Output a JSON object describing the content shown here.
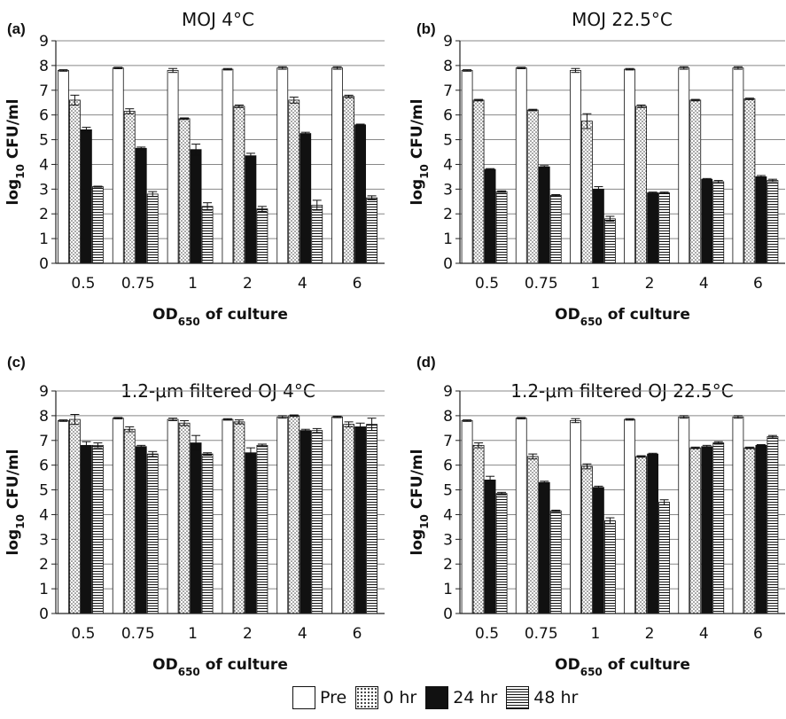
{
  "x_axis_label": {
    "prefix": "OD",
    "sub": "650",
    "suffix": " of  culture"
  },
  "y_axis_label": {
    "prefix": "log",
    "sub": "10",
    "suffix": " CFU/ml"
  },
  "legend": [
    {
      "key": "pre",
      "label": "Pre"
    },
    {
      "key": "0hr",
      "label": "0 hr"
    },
    {
      "key": "24hr",
      "label": "24 hr"
    },
    {
      "key": "48hr",
      "label": "48 hr"
    }
  ],
  "chart_data": [
    {
      "type": "bar",
      "panel": "(a)",
      "title": "MOJ 4°C",
      "categories": [
        "0.5",
        "0.75",
        "1",
        "2",
        "4",
        "6"
      ],
      "ylim": [
        0,
        9
      ],
      "yticks": [
        0,
        1,
        2,
        3,
        4,
        5,
        6,
        7,
        8,
        9
      ],
      "grid": true,
      "series": [
        {
          "name": "Pre",
          "values": [
            7.8,
            7.9,
            7.8,
            7.85,
            7.9,
            7.9
          ],
          "err": [
            0.03,
            0.03,
            0.08,
            0.03,
            0.05,
            0.05
          ]
        },
        {
          "name": "0 hr",
          "values": [
            6.6,
            6.15,
            5.85,
            6.35,
            6.6,
            6.75
          ],
          "err": [
            0.2,
            0.1,
            0.03,
            0.05,
            0.12,
            0.05
          ]
        },
        {
          "name": "24 hr",
          "values": [
            5.4,
            4.65,
            4.6,
            4.35,
            5.25,
            5.6
          ],
          "err": [
            0.1,
            0.05,
            0.22,
            0.1,
            0.05,
            0.03
          ]
        },
        {
          "name": "48 hr",
          "values": [
            3.1,
            2.8,
            2.3,
            2.2,
            2.35,
            2.65
          ],
          "err": [
            0.02,
            0.1,
            0.15,
            0.1,
            0.2,
            0.08
          ]
        }
      ]
    },
    {
      "type": "bar",
      "panel": "(b)",
      "title": "MOJ 22.5°C",
      "categories": [
        "0.5",
        "0.75",
        "1",
        "2",
        "4",
        "6"
      ],
      "ylim": [
        0,
        9
      ],
      "yticks": [
        0,
        1,
        2,
        3,
        4,
        5,
        6,
        7,
        8,
        9
      ],
      "grid": true,
      "series": [
        {
          "name": "Pre",
          "values": [
            7.8,
            7.9,
            7.8,
            7.85,
            7.9,
            7.9
          ],
          "err": [
            0.03,
            0.03,
            0.08,
            0.03,
            0.05,
            0.05
          ]
        },
        {
          "name": "0 hr",
          "values": [
            6.6,
            6.2,
            5.75,
            6.35,
            6.6,
            6.65
          ],
          "err": [
            0.03,
            0.03,
            0.3,
            0.05,
            0.03,
            0.03
          ]
        },
        {
          "name": "24 hr",
          "values": [
            3.8,
            3.9,
            3.0,
            2.85,
            3.4,
            3.5
          ],
          "err": [
            0.03,
            0.05,
            0.1,
            0.03,
            0.03,
            0.05
          ]
        },
        {
          "name": "48 hr",
          "values": [
            2.9,
            2.75,
            1.8,
            2.85,
            3.3,
            3.35
          ],
          "err": [
            0.03,
            0.03,
            0.1,
            0.03,
            0.05,
            0.05
          ]
        }
      ]
    },
    {
      "type": "bar",
      "panel": "(c)",
      "title": "1.2-μm filtered OJ 4°C",
      "categories": [
        "0.5",
        "0.75",
        "1",
        "2",
        "4",
        "6"
      ],
      "ylim": [
        0,
        9
      ],
      "yticks": [
        0,
        1,
        2,
        3,
        4,
        5,
        6,
        7,
        8,
        9
      ],
      "grid": true,
      "series": [
        {
          "name": "Pre",
          "values": [
            7.8,
            7.9,
            7.85,
            7.85,
            7.95,
            7.95
          ],
          "err": [
            0.03,
            0.03,
            0.05,
            0.03,
            0.05,
            0.03
          ]
        },
        {
          "name": "0 hr",
          "values": [
            7.85,
            7.45,
            7.7,
            7.75,
            8.0,
            7.65
          ],
          "err": [
            0.2,
            0.1,
            0.1,
            0.08,
            0.03,
            0.1
          ]
        },
        {
          "name": "24 hr",
          "values": [
            6.8,
            6.75,
            6.9,
            6.5,
            7.4,
            7.55
          ],
          "err": [
            0.15,
            0.05,
            0.3,
            0.2,
            0.05,
            0.15
          ]
        },
        {
          "name": "48 hr",
          "values": [
            6.8,
            6.45,
            6.45,
            6.8,
            7.4,
            7.65
          ],
          "err": [
            0.1,
            0.1,
            0.05,
            0.05,
            0.08,
            0.25
          ]
        }
      ]
    },
    {
      "type": "bar",
      "panel": "(d)",
      "title": "1.2-μm filtered OJ 22.5°C",
      "categories": [
        "0.5",
        "0.75",
        "1",
        "2",
        "4",
        "6"
      ],
      "ylim": [
        0,
        9
      ],
      "yticks": [
        0,
        1,
        2,
        3,
        4,
        5,
        6,
        7,
        8,
        9
      ],
      "grid": true,
      "series": [
        {
          "name": "Pre",
          "values": [
            7.8,
            7.9,
            7.8,
            7.85,
            7.95,
            7.95
          ],
          "err": [
            0.03,
            0.03,
            0.08,
            0.03,
            0.05,
            0.05
          ]
        },
        {
          "name": "0 hr",
          "values": [
            6.8,
            6.35,
            5.95,
            6.35,
            6.7,
            6.7
          ],
          "err": [
            0.1,
            0.1,
            0.1,
            0.03,
            0.03,
            0.03
          ]
        },
        {
          "name": "24 hr",
          "values": [
            5.4,
            5.3,
            5.1,
            6.45,
            6.75,
            6.8
          ],
          "err": [
            0.15,
            0.05,
            0.05,
            0.03,
            0.05,
            0.03
          ]
        },
        {
          "name": "48 hr",
          "values": [
            4.85,
            4.15,
            3.75,
            4.5,
            6.9,
            7.15
          ],
          "err": [
            0.05,
            0.03,
            0.12,
            0.1,
            0.05,
            0.05
          ]
        }
      ]
    }
  ]
}
